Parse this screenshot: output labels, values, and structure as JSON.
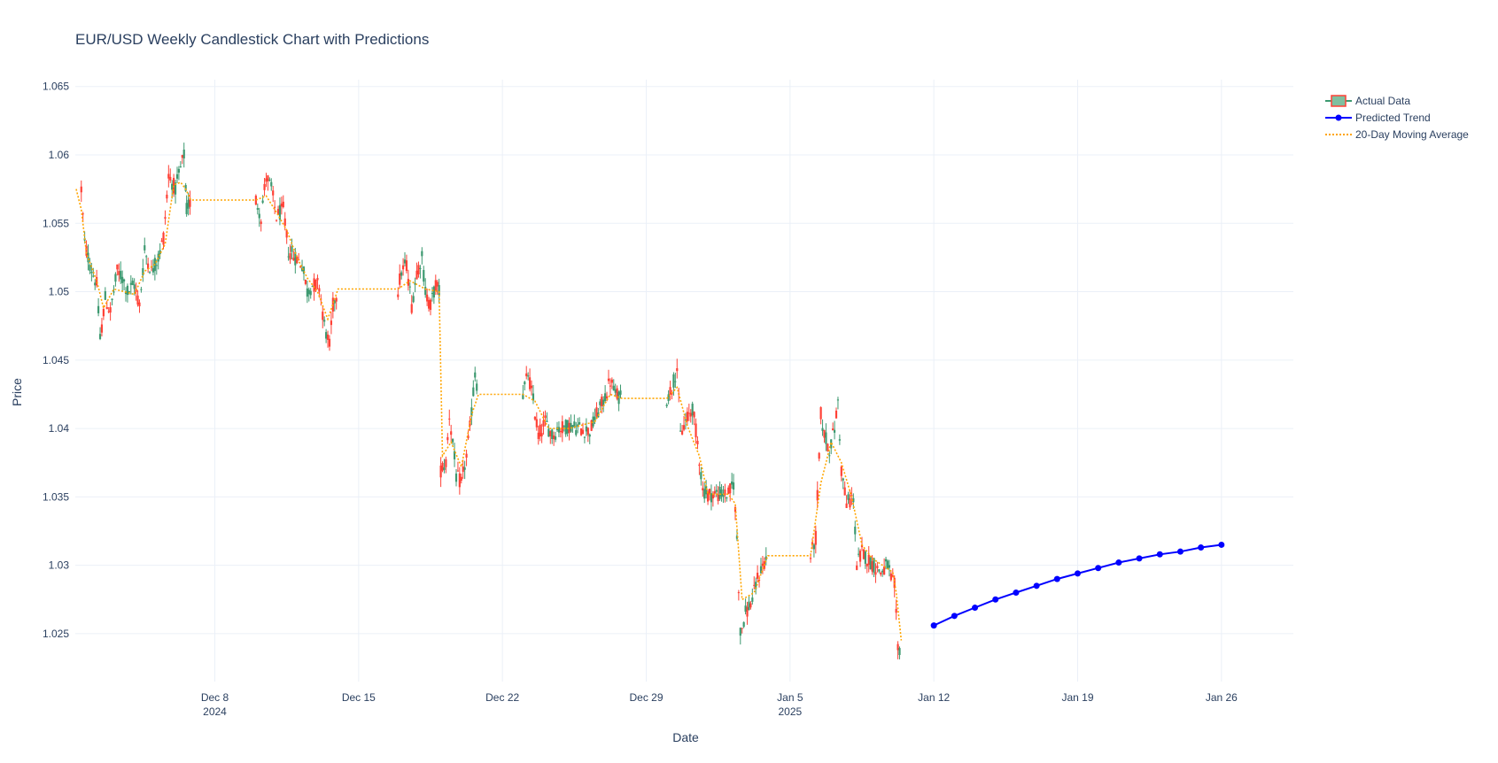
{
  "chart_data": {
    "type": "line",
    "title": "EUR/USD Weekly Candlestick Chart with Predictions",
    "xlabel": "Date",
    "ylabel": "Price",
    "ylim": [
      1.0215,
      1.0655
    ],
    "xlim": [
      "2024-12-01T05:00",
      "2025-01-29T12:00"
    ],
    "grid": true,
    "legend_position": "top-right",
    "x_ticks": [
      {
        "date": "2024-12-08",
        "label": "Dec 8",
        "sublabel": "2024"
      },
      {
        "date": "2024-12-15",
        "label": "Dec 15",
        "sublabel": ""
      },
      {
        "date": "2024-12-22",
        "label": "Dec 22",
        "sublabel": ""
      },
      {
        "date": "2024-12-29",
        "label": "Dec 29",
        "sublabel": ""
      },
      {
        "date": "2025-01-05",
        "label": "Jan 5",
        "sublabel": "2025"
      },
      {
        "date": "2025-01-12",
        "label": "Jan 12",
        "sublabel": ""
      },
      {
        "date": "2025-01-19",
        "label": "Jan 19",
        "sublabel": ""
      },
      {
        "date": "2025-01-26",
        "label": "Jan 26",
        "sublabel": ""
      }
    ],
    "y_ticks": [
      {
        "value": 1.025,
        "label": "1.025"
      },
      {
        "value": 1.03,
        "label": "1.03"
      },
      {
        "value": 1.035,
        "label": "1.035"
      },
      {
        "value": 1.04,
        "label": "1.04"
      },
      {
        "value": 1.045,
        "label": "1.045"
      },
      {
        "value": 1.05,
        "label": "1.05"
      },
      {
        "value": 1.055,
        "label": "1.055"
      },
      {
        "value": 1.06,
        "label": "1.06"
      },
      {
        "value": 1.065,
        "label": "1.065"
      }
    ],
    "series": [
      {
        "name": "Actual Data",
        "kind": "candlestick",
        "increasing_color": "#3d9970",
        "decreasing_color": "#ff4136",
        "price_path": [
          [
            "2024-12-01T12:00",
            1.0575
          ],
          [
            "2024-12-01T16:00",
            1.0535
          ],
          [
            "2024-12-01T22:00",
            1.052
          ],
          [
            "2024-12-02T06:00",
            1.0505
          ],
          [
            "2024-12-02T10:00",
            1.0465
          ],
          [
            "2024-12-02T16:00",
            1.0495
          ],
          [
            "2024-12-02T22:00",
            1.0485
          ],
          [
            "2024-12-03T06:00",
            1.0515
          ],
          [
            "2024-12-03T12:00",
            1.051
          ],
          [
            "2024-12-03T18:00",
            1.05
          ],
          [
            "2024-12-04T02:00",
            1.0505
          ],
          [
            "2024-12-04T08:00",
            1.049
          ],
          [
            "2024-12-04T14:00",
            1.053
          ],
          [
            "2024-12-04T22:00",
            1.0515
          ],
          [
            "2024-12-05T06:00",
            1.0525
          ],
          [
            "2024-12-05T12:00",
            1.054
          ],
          [
            "2024-12-05T18:00",
            1.0585
          ],
          [
            "2024-12-06T02:00",
            1.0575
          ],
          [
            "2024-12-06T08:00",
            1.059
          ],
          [
            "2024-12-06T12:00",
            1.06
          ],
          [
            "2024-12-06T15:00",
            1.056
          ],
          [
            "2024-12-06T20:00",
            1.0567
          ],
          [
            "2024-12-10T00:00",
            1.0567
          ],
          [
            "2024-12-10T06:00",
            1.0555
          ],
          [
            "2024-12-10T12:00",
            1.0585
          ],
          [
            "2024-12-10T18:00",
            1.0575
          ],
          [
            "2024-12-11T00:00",
            1.0555
          ],
          [
            "2024-12-11T08:00",
            1.056
          ],
          [
            "2024-12-11T14:00",
            1.053
          ],
          [
            "2024-12-11T22:00",
            1.0525
          ],
          [
            "2024-12-12T06:00",
            1.052
          ],
          [
            "2024-12-12T12:00",
            1.05
          ],
          [
            "2024-12-12T18:00",
            1.0505
          ],
          [
            "2024-12-13T02:00",
            1.0505
          ],
          [
            "2024-12-13T08:00",
            1.0475
          ],
          [
            "2024-12-13T14:00",
            1.046
          ],
          [
            "2024-12-13T18:00",
            1.049
          ],
          [
            "2024-12-14T00:00",
            1.0502
          ],
          [
            "2024-12-16T22:00",
            1.0502
          ],
          [
            "2024-12-17T02:00",
            1.0515
          ],
          [
            "2024-12-17T08:00",
            1.052
          ],
          [
            "2024-12-17T14:00",
            1.049
          ],
          [
            "2024-12-17T20:00",
            1.0515
          ],
          [
            "2024-12-18T02:00",
            1.0525
          ],
          [
            "2024-12-18T06:00",
            1.05
          ],
          [
            "2024-12-18T12:00",
            1.049
          ],
          [
            "2024-12-18T18:00",
            1.0505
          ],
          [
            "2024-12-18T22:00",
            1.05
          ],
          [
            "2024-12-19T00:00",
            1.037
          ],
          [
            "2024-12-19T06:00",
            1.0375
          ],
          [
            "2024-12-19T10:00",
            1.041
          ],
          [
            "2024-12-19T14:00",
            1.039
          ],
          [
            "2024-12-19T18:00",
            1.0365
          ],
          [
            "2024-12-20T00:00",
            1.036
          ],
          [
            "2024-12-20T06:00",
            1.038
          ],
          [
            "2024-12-20T10:00",
            1.04
          ],
          [
            "2024-12-20T16:00",
            1.044
          ],
          [
            "2024-12-20T20:00",
            1.0425
          ],
          [
            "2024-12-23T00:00",
            1.0425
          ],
          [
            "2024-12-23T06:00",
            1.044
          ],
          [
            "2024-12-23T12:00",
            1.042
          ],
          [
            "2024-12-23T18:00",
            1.0395
          ],
          [
            "2024-12-24T02:00",
            1.0405
          ],
          [
            "2024-12-24T10:00",
            1.0395
          ],
          [
            "2024-12-24T18:00",
            1.04
          ],
          [
            "2024-12-25T06:00",
            1.0402
          ],
          [
            "2024-12-26T06:00",
            1.0398
          ],
          [
            "2024-12-26T14:00",
            1.041
          ],
          [
            "2024-12-26T22:00",
            1.042
          ],
          [
            "2024-12-27T06:00",
            1.0435
          ],
          [
            "2024-12-27T12:00",
            1.0425
          ],
          [
            "2024-12-27T20:00",
            1.0422
          ],
          [
            "2024-12-30T00:00",
            1.0422
          ],
          [
            "2024-12-30T06:00",
            1.043
          ],
          [
            "2024-12-30T12:00",
            1.0445
          ],
          [
            "2024-12-30T16:00",
            1.0395
          ],
          [
            "2024-12-30T22:00",
            1.0405
          ],
          [
            "2024-12-31T06:00",
            1.0415
          ],
          [
            "2024-12-31T12:00",
            1.039
          ],
          [
            "2024-12-31T18:00",
            1.0355
          ],
          [
            "2025-01-01T00:00",
            1.0352
          ],
          [
            "2025-01-02T00:00",
            1.0352
          ],
          [
            "2025-01-02T06:00",
            1.036
          ],
          [
            "2025-01-02T10:00",
            1.032
          ],
          [
            "2025-01-02T14:00",
            1.025
          ],
          [
            "2025-01-02T20:00",
            1.0265
          ],
          [
            "2025-01-03T04:00",
            1.0275
          ],
          [
            "2025-01-03T10:00",
            1.029
          ],
          [
            "2025-01-03T16:00",
            1.03
          ],
          [
            "2025-01-03T22:00",
            1.0307
          ],
          [
            "2025-01-06T00:00",
            1.0307
          ],
          [
            "2025-01-06T06:00",
            1.032
          ],
          [
            "2025-01-06T12:00",
            1.041
          ],
          [
            "2025-01-06T16:00",
            1.0395
          ],
          [
            "2025-01-06T22:00",
            1.0385
          ],
          [
            "2025-01-07T04:00",
            1.04
          ],
          [
            "2025-01-07T08:00",
            1.042
          ],
          [
            "2025-01-07T12:00",
            1.037
          ],
          [
            "2025-01-07T18:00",
            1.0345
          ],
          [
            "2025-01-08T02:00",
            1.035
          ],
          [
            "2025-01-08T06:00",
            1.03
          ],
          [
            "2025-01-08T12:00",
            1.031
          ],
          [
            "2025-01-08T18:00",
            1.0305
          ],
          [
            "2025-01-09T02:00",
            1.03
          ],
          [
            "2025-01-09T10:00",
            1.0295
          ],
          [
            "2025-01-09T18:00",
            1.03
          ],
          [
            "2025-01-09T22:00",
            1.029
          ],
          [
            "2025-01-10T02:00",
            1.0285
          ],
          [
            "2025-01-10T06:00",
            1.024
          ],
          [
            "2025-01-10T10:00",
            1.0238
          ]
        ]
      },
      {
        "name": "Predicted Trend",
        "kind": "line+markers",
        "color": "#0000ff",
        "x": [
          "2025-01-12",
          "2025-01-13",
          "2025-01-14",
          "2025-01-15",
          "2025-01-16",
          "2025-01-17",
          "2025-01-18",
          "2025-01-19",
          "2025-01-20",
          "2025-01-21",
          "2025-01-22",
          "2025-01-23",
          "2025-01-24",
          "2025-01-25",
          "2025-01-26"
        ],
        "y": [
          1.0256,
          1.0263,
          1.0269,
          1.0275,
          1.028,
          1.0285,
          1.029,
          1.0294,
          1.0298,
          1.0302,
          1.0305,
          1.0308,
          1.031,
          1.0313,
          1.0315
        ]
      },
      {
        "name": "20-Day Moving Average",
        "kind": "dotted-line",
        "color": "#ffa500",
        "x": [
          "2024-12-01T06:00",
          "2024-12-01T12:00",
          "2024-12-01T18:00",
          "2024-12-02T06:00",
          "2024-12-02T14:00",
          "2024-12-03T02:00",
          "2024-12-03T14:00",
          "2024-12-04T02:00",
          "2024-12-04T14:00",
          "2024-12-05T02:00",
          "2024-12-05T14:00",
          "2024-12-06T00:00",
          "2024-12-06T08:00",
          "2024-12-06T14:00",
          "2024-12-06T20:00",
          "2024-12-10T00:00",
          "2024-12-10T12:00",
          "2024-12-11T00:00",
          "2024-12-11T12:00",
          "2024-12-12T00:00",
          "2024-12-12T12:00",
          "2024-12-13T00:00",
          "2024-12-13T12:00",
          "2024-12-14T00:00",
          "2024-12-16T22:00",
          "2024-12-17T12:00",
          "2024-12-18T06:00",
          "2024-12-18T22:00",
          "2024-12-19T02:00",
          "2024-12-19T12:00",
          "2024-12-20T00:00",
          "2024-12-20T12:00",
          "2024-12-20T20:00",
          "2024-12-23T00:00",
          "2024-12-23T14:00",
          "2024-12-24T06:00",
          "2024-12-25T06:00",
          "2024-12-26T12:00",
          "2024-12-27T06:00",
          "2024-12-27T20:00",
          "2024-12-30T00:00",
          "2024-12-30T12:00",
          "2024-12-31T00:00",
          "2024-12-31T14:00",
          "2025-01-01T00:00",
          "2025-01-02T00:00",
          "2025-01-02T08:00",
          "2025-01-02T16:00",
          "2025-01-03T06:00",
          "2025-01-03T22:00",
          "2025-01-06T00:00",
          "2025-01-06T12:00",
          "2025-01-07T00:00",
          "2025-01-07T12:00",
          "2025-01-08T00:00",
          "2025-01-08T12:00",
          "2025-01-09T00:00",
          "2025-01-09T12:00",
          "2025-01-10T00:00",
          "2025-01-10T04:00",
          "2025-01-10T10:00"
        ],
        "y": [
          1.0575,
          1.056,
          1.0528,
          1.0508,
          1.0488,
          1.0502,
          1.05,
          1.0498,
          1.0515,
          1.052,
          1.0535,
          1.0578,
          1.058,
          1.0575,
          1.0567,
          1.0567,
          1.057,
          1.0558,
          1.0545,
          1.0525,
          1.051,
          1.05,
          1.048,
          1.0502,
          1.0502,
          1.0508,
          1.0502,
          1.05,
          1.038,
          1.039,
          1.0372,
          1.041,
          1.0425,
          1.0425,
          1.042,
          1.04,
          1.04,
          1.0405,
          1.0425,
          1.0422,
          1.0422,
          1.043,
          1.0402,
          1.038,
          1.0352,
          1.0352,
          1.0345,
          1.0275,
          1.028,
          1.0307,
          1.0307,
          1.036,
          1.039,
          1.0375,
          1.035,
          1.0315,
          1.0305,
          1.03,
          1.0295,
          1.028,
          1.0245
        ]
      }
    ]
  }
}
